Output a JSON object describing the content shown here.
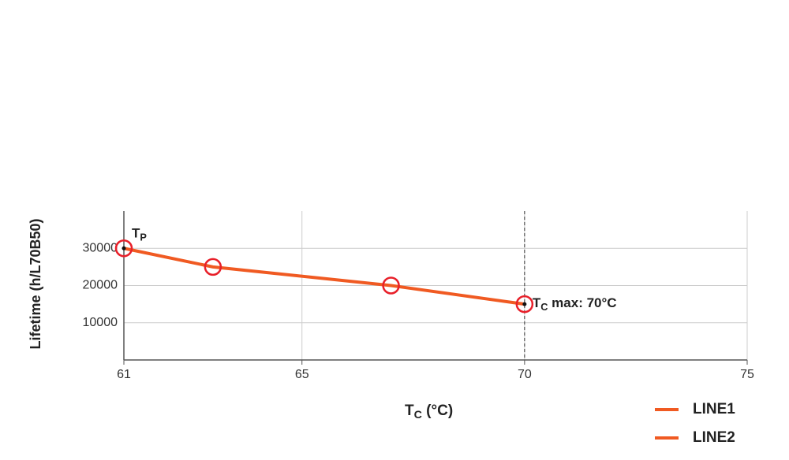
{
  "chart_data": {
    "type": "line",
    "y_label": "Lifetime (h/L70B50)",
    "x_label": {
      "main": "T",
      "sub": "C",
      "rest": " (°C)"
    },
    "x": [
      61,
      63,
      67,
      70
    ],
    "series": [
      {
        "name": "LINE1",
        "color": "#f05a22",
        "values": [
          30000,
          25000,
          20000,
          15000
        ]
      },
      {
        "name": "LINE2",
        "color": "#f05a22",
        "marker_color": "#e8202a",
        "values": [
          30000,
          25000,
          20000,
          15000
        ]
      }
    ],
    "xlim": [
      61,
      75
    ],
    "xticks": [
      61,
      65,
      70,
      75
    ],
    "ylim": [
      0,
      40000
    ],
    "yticks": [
      10000,
      20000,
      30000
    ],
    "grid": true,
    "annotations": [
      {
        "x": 61,
        "y": 30000,
        "main": "T",
        "sub": "P",
        "rest": "",
        "vline": false
      },
      {
        "x": 70,
        "y": 15000,
        "main": "T",
        "sub": "C",
        "rest": " max: 70°C",
        "vline": true
      }
    ]
  }
}
